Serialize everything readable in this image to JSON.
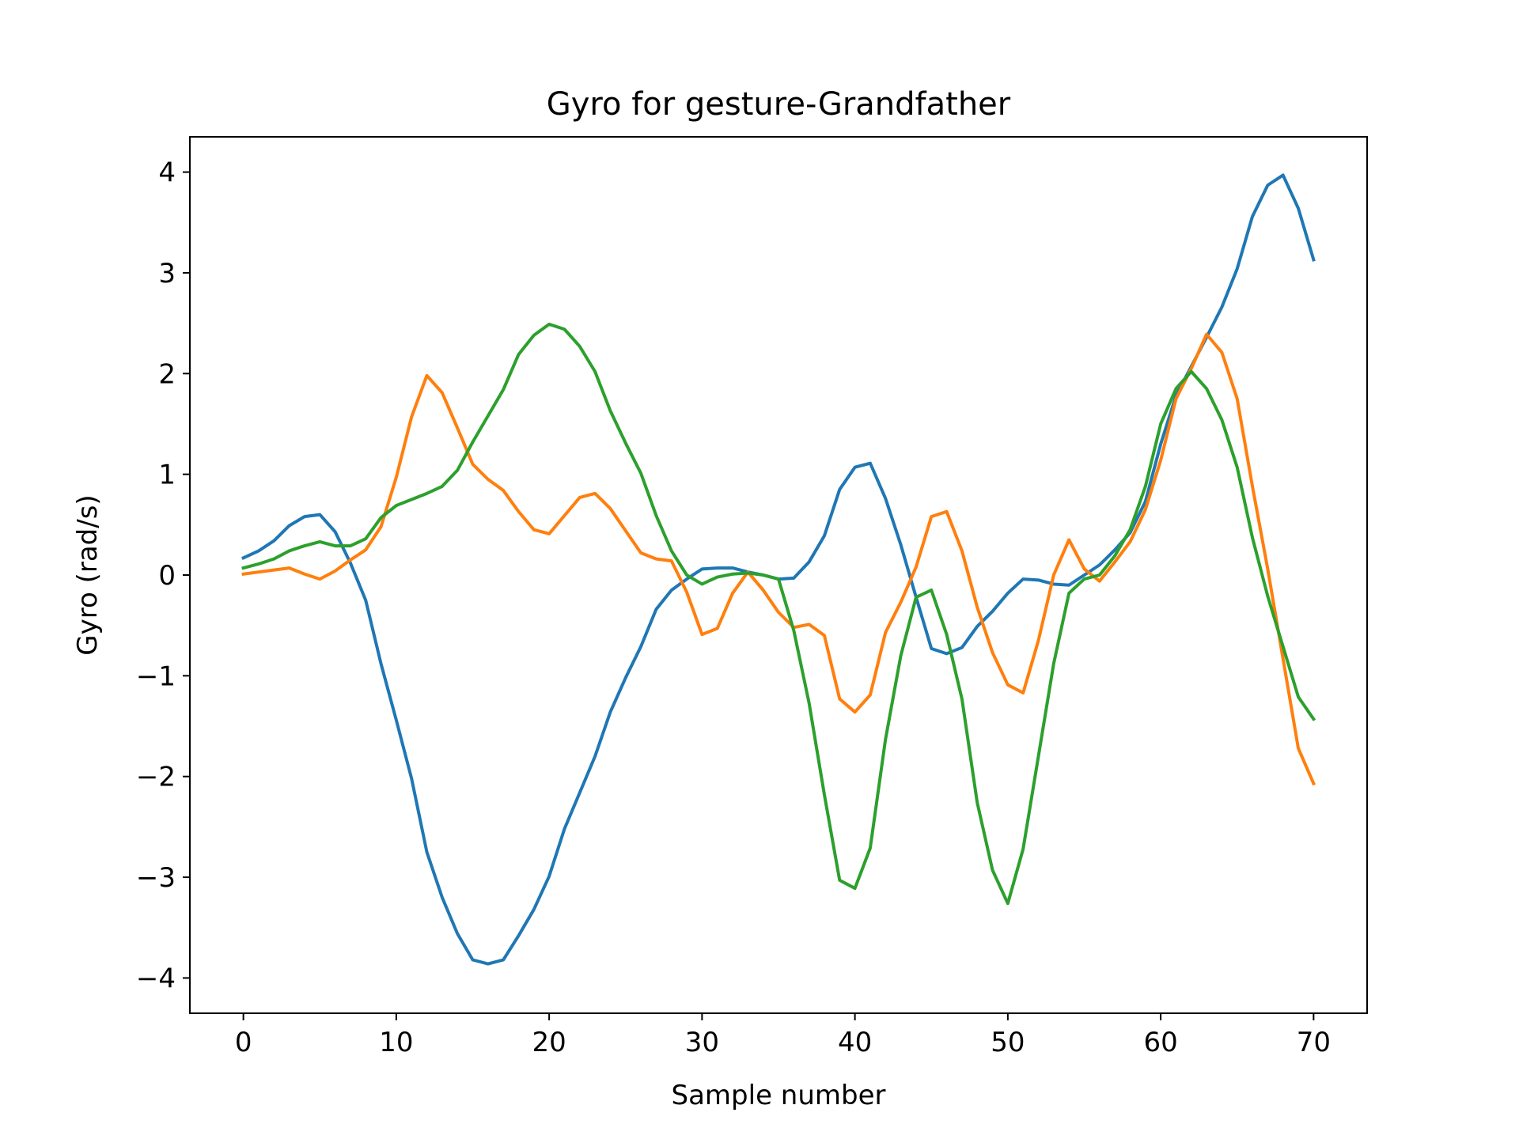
{
  "chart_data": {
    "type": "line",
    "title": "Gyro for gesture-Grandfather",
    "xlabel": "Sample number",
    "ylabel": "Gyro  (rad/s)",
    "xlim": [
      -3.5,
      73.5
    ],
    "ylim": [
      -4.35,
      4.35
    ],
    "xticks": [
      0,
      10,
      20,
      30,
      40,
      50,
      60,
      70
    ],
    "xtick_labels": [
      "0",
      "10",
      "20",
      "30",
      "40",
      "50",
      "60",
      "70"
    ],
    "yticks": [
      -4,
      -3,
      -2,
      -1,
      0,
      1,
      2,
      3,
      4
    ],
    "ytick_labels": [
      "−4",
      "−3",
      "−2",
      "−1",
      "0",
      "1",
      "2",
      "3",
      "4"
    ],
    "grid": false,
    "legend": false,
    "x": [
      0,
      1,
      2,
      3,
      4,
      5,
      6,
      7,
      8,
      9,
      10,
      11,
      12,
      13,
      14,
      15,
      16,
      17,
      18,
      19,
      20,
      21,
      22,
      23,
      24,
      25,
      26,
      27,
      28,
      29,
      30,
      31,
      32,
      33,
      34,
      35,
      36,
      37,
      38,
      39,
      40,
      41,
      42,
      43,
      44,
      45,
      46,
      47,
      48,
      49,
      50,
      51,
      52,
      53,
      54,
      55,
      56,
      57,
      58,
      59,
      60,
      61,
      62,
      63,
      64,
      65,
      66,
      67,
      68,
      69,
      70
    ],
    "series": [
      {
        "color": "#1f77b4",
        "values": [
          0.17,
          0.24,
          0.34,
          0.49,
          0.58,
          0.6,
          0.43,
          0.12,
          -0.25,
          -0.88,
          -1.44,
          -2.02,
          -2.75,
          -3.2,
          -3.56,
          -3.82,
          -3.86,
          -3.82,
          -3.58,
          -3.32,
          -2.99,
          -2.52,
          -2.16,
          -1.8,
          -1.36,
          -1.02,
          -0.71,
          -0.34,
          -0.15,
          -0.04,
          0.06,
          0.07,
          0.07,
          0.03,
          0.0,
          -0.04,
          -0.03,
          0.13,
          0.39,
          0.85,
          1.07,
          1.11,
          0.76,
          0.3,
          -0.22,
          -0.73,
          -0.78,
          -0.72,
          -0.51,
          -0.36,
          -0.18,
          -0.04,
          -0.05,
          -0.09,
          -0.1,
          0.0,
          0.1,
          0.25,
          0.42,
          0.73,
          1.3,
          1.78,
          2.07,
          2.36,
          2.66,
          3.04,
          3.56,
          3.87,
          3.97,
          3.64,
          3.13
        ]
      },
      {
        "color": "#ff7f0e",
        "values": [
          0.01,
          0.03,
          0.05,
          0.07,
          0.01,
          -0.04,
          0.04,
          0.15,
          0.25,
          0.48,
          0.97,
          1.57,
          1.98,
          1.81,
          1.46,
          1.1,
          0.95,
          0.84,
          0.63,
          0.45,
          0.41,
          0.59,
          0.77,
          0.81,
          0.66,
          0.44,
          0.22,
          0.16,
          0.14,
          -0.17,
          -0.59,
          -0.53,
          -0.18,
          0.03,
          -0.15,
          -0.37,
          -0.52,
          -0.49,
          -0.6,
          -1.23,
          -1.36,
          -1.19,
          -0.57,
          -0.27,
          0.08,
          0.58,
          0.63,
          0.24,
          -0.32,
          -0.77,
          -1.09,
          -1.17,
          -0.65,
          0.0,
          0.35,
          0.06,
          -0.06,
          0.13,
          0.33,
          0.65,
          1.14,
          1.75,
          2.05,
          2.39,
          2.21,
          1.75,
          0.88,
          0.06,
          -0.83,
          -1.72,
          -2.07
        ]
      },
      {
        "color": "#2ca02c",
        "values": [
          0.07,
          0.11,
          0.16,
          0.24,
          0.29,
          0.33,
          0.29,
          0.29,
          0.36,
          0.57,
          0.69,
          0.75,
          0.81,
          0.88,
          1.04,
          1.32,
          1.58,
          1.84,
          2.19,
          2.38,
          2.49,
          2.44,
          2.27,
          2.02,
          1.63,
          1.31,
          1.01,
          0.59,
          0.24,
          0.0,
          -0.09,
          -0.02,
          0.01,
          0.02,
          0.0,
          -0.04,
          -0.55,
          -1.27,
          -2.18,
          -3.03,
          -3.11,
          -2.71,
          -1.63,
          -0.8,
          -0.22,
          -0.15,
          -0.59,
          -1.23,
          -2.26,
          -2.93,
          -3.26,
          -2.72,
          -1.8,
          -0.88,
          -0.18,
          -0.04,
          0.0,
          0.19,
          0.45,
          0.88,
          1.5,
          1.85,
          2.02,
          1.85,
          1.54,
          1.07,
          0.37,
          -0.21,
          -0.71,
          -1.21,
          -1.43
        ]
      }
    ]
  }
}
